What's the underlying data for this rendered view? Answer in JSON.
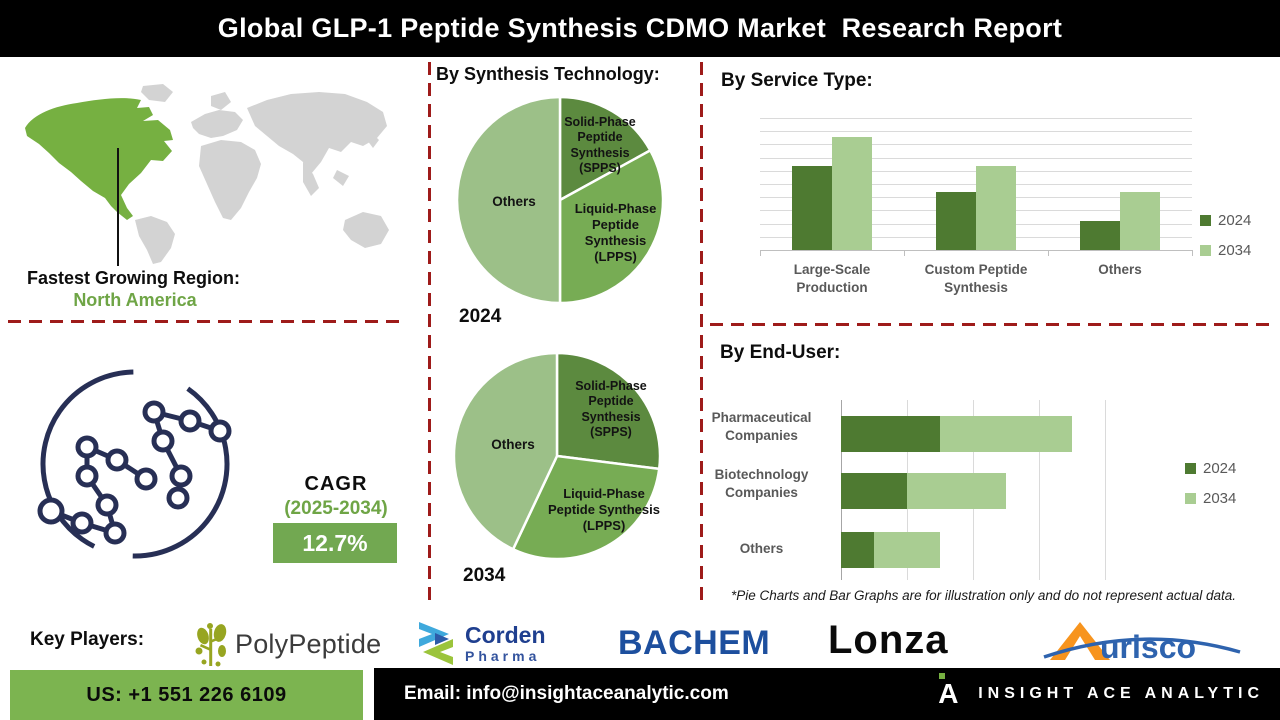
{
  "header": {
    "title": "Global GLP-1 Peptide Synthesis CDMO Market  Research Report"
  },
  "map_section": {
    "label": "Fastest Growing Region:",
    "region": "North America"
  },
  "cagr_section": {
    "label": "CAGR",
    "period": "(2025-2034)",
    "value": "12.7%"
  },
  "disclaimer": "*Pie Charts and Bar Graphs are for illustration only and do not represent actual data.",
  "key_players": {
    "label": "Key Players:",
    "companies": [
      {
        "name": "PolyPeptide"
      },
      {
        "name": "Corden",
        "sub": "Pharma"
      },
      {
        "name": "BACHEM"
      },
      {
        "name": "Lonza"
      },
      {
        "name": "Aurisco",
        "wordmark": "urisco"
      }
    ]
  },
  "footer": {
    "phone": "US: +1 551 226 6109",
    "email": "Email: info@insightaceanalytic.com",
    "brand": "INSIGHT ACE ANALYTIC",
    "brand_glyph": "A"
  },
  "colors": {
    "accent_green_map": "#76B041",
    "accent_green_footer": "#7CB450",
    "accent_green_box": "#72A851",
    "dashed_red": "#9E1B1A",
    "molecule_navy": "#272F55",
    "chart_label_gray": "#595959"
  },
  "chart_data": [
    {
      "type": "pie",
      "title": "By Synthesis Technology:",
      "year_label": "2024",
      "slices": [
        {
          "label": "Solid-Phase Peptide Synthesis (SPPS)",
          "value": 17,
          "color": "#5C8A3F"
        },
        {
          "label": "Liquid-Phase Peptide Synthesis (LPPS)",
          "value": 33,
          "color": "#77AC54"
        },
        {
          "label": "Others",
          "value": 50,
          "color": "#9CC088"
        }
      ]
    },
    {
      "type": "pie",
      "title": "By Synthesis Technology:",
      "year_label": "2034",
      "slices": [
        {
          "label": "Solid-Phase Peptide Synthesis (SPPS)",
          "value": 27,
          "color": "#5C8A3F"
        },
        {
          "label": "Liquid-Phase Peptide Synthesis (LPPS)",
          "value": 30,
          "color": "#77AC54"
        },
        {
          "label": "Others",
          "value": 43,
          "color": "#9CC088"
        }
      ]
    },
    {
      "type": "bar",
      "title": "By Service Type:",
      "categories": [
        "Large-Scale Production",
        "Custom Peptide Synthesis",
        "Others"
      ],
      "series": [
        {
          "name": "2024",
          "color": "#4E7A31",
          "values": [
            6.4,
            4.4,
            2.2
          ]
        },
        {
          "name": "2034",
          "color": "#A9CD92",
          "values": [
            8.6,
            6.4,
            4.4
          ]
        }
      ],
      "ylim": [
        0,
        10
      ],
      "grid_step": 1,
      "legend_position": "right"
    },
    {
      "type": "bar",
      "orientation": "horizontal",
      "stacked": true,
      "title": "By End-User:",
      "categories": [
        "Pharmaceutical Companies",
        "Biotechnology Companies",
        "Others"
      ],
      "series": [
        {
          "name": "2024",
          "color": "#4E7A31",
          "values": [
            1.5,
            1.0,
            0.5
          ]
        },
        {
          "name": "2034",
          "color": "#A9CD92",
          "values": [
            2.0,
            1.5,
            1.0
          ]
        }
      ],
      "xlim": [
        0,
        4
      ],
      "grid_step": 1,
      "legend_position": "right"
    }
  ]
}
